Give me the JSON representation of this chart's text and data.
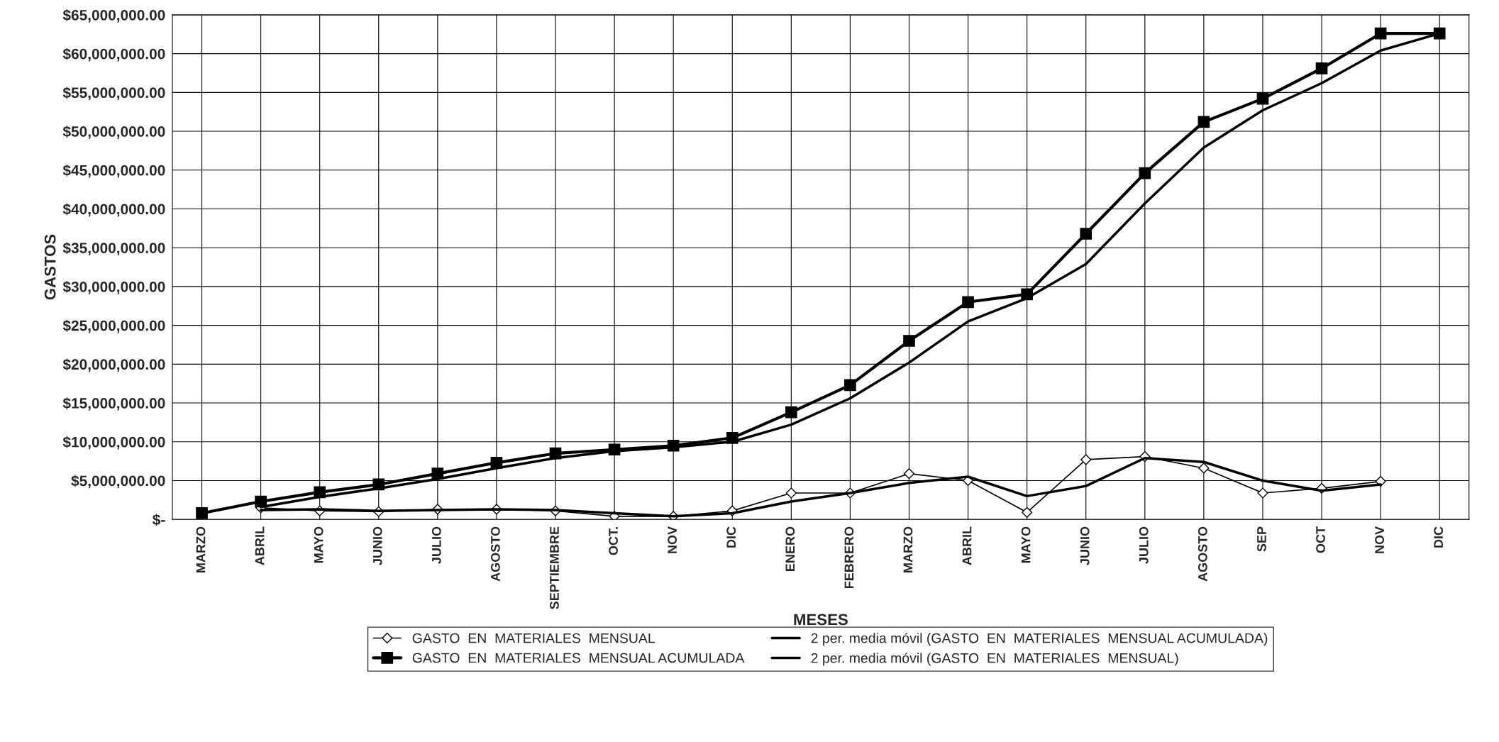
{
  "chart_data": {
    "type": "line",
    "xlabel": "MESES",
    "ylabel": "GASTOS",
    "categories": [
      "MARZO",
      "ABRIL",
      "MAYO",
      "JUNIO",
      "JULIO",
      "AGOSTO",
      "SEPTIEMBRE",
      "OCT.",
      "NOV",
      "DIC",
      "ENERO",
      "FEBRERO",
      "MARZO",
      "ABRIL",
      "MAYO",
      "JUNIO",
      "JULIO",
      "AGOSTO",
      "SEP",
      "OCT",
      "NOV",
      "DIC"
    ],
    "ylim": [
      0,
      65000000
    ],
    "yticks": [
      {
        "value": 0,
        "label": "$-"
      },
      {
        "value": 5000000,
        "label": "$5,000,000.00"
      },
      {
        "value": 10000000,
        "label": "$10,000,000.00"
      },
      {
        "value": 15000000,
        "label": "$15,000,000.00"
      },
      {
        "value": 20000000,
        "label": "$20,000,000.00"
      },
      {
        "value": 25000000,
        "label": "$25,000,000.00"
      },
      {
        "value": 30000000,
        "label": "$30,000,000.00"
      },
      {
        "value": 35000000,
        "label": "$35,000,000.00"
      },
      {
        "value": 40000000,
        "label": "$40,000,000.00"
      },
      {
        "value": 45000000,
        "label": "$45,000,000.00"
      },
      {
        "value": 50000000,
        "label": "$50,000,000.00"
      },
      {
        "value": 55000000,
        "label": "$55,000,000.00"
      },
      {
        "value": 60000000,
        "label": "$60,000,000.00"
      },
      {
        "value": 65000000,
        "label": "$65,000,000.00"
      }
    ],
    "grid": true,
    "legend": "bottom",
    "series": [
      {
        "name": "GASTO  EN  MATERIALES  MENSUAL",
        "color": "#000000",
        "marker": "diamond",
        "values": [
          null,
          1500000,
          1100000,
          1000000,
          1300000,
          1300000,
          1100000,
          400000,
          400000,
          1100000,
          3400000,
          3400000,
          5900000,
          5000000,
          900000,
          7700000,
          8100000,
          6600000,
          3400000,
          4000000,
          4900000,
          null
        ]
      },
      {
        "name": "GASTO  EN  MATERIALES  MENSUAL ACUMULADA",
        "color": "#000000",
        "marker": "square",
        "values": [
          800000,
          2300000,
          3500000,
          4500000,
          5900000,
          7300000,
          8500000,
          9000000,
          9500000,
          10500000,
          13800000,
          17300000,
          23000000,
          28000000,
          29000000,
          36800000,
          44600000,
          51200000,
          54200000,
          58100000,
          62600000,
          62600000
        ]
      },
      {
        "name": "2 per. media móvil (GASTO  EN  MATERIALES  MENSUAL ACUMULADA)",
        "color": "#000000",
        "marker": "none",
        "values": [
          null,
          1600000,
          2900000,
          4000000,
          5200000,
          6600000,
          7900000,
          8800000,
          9300000,
          10000000,
          12200000,
          15600000,
          20200000,
          25500000,
          28500000,
          32900000,
          40700000,
          47900000,
          52700000,
          56200000,
          60400000,
          62600000
        ]
      },
      {
        "name": "2 per. media móvil (GASTO  EN  MATERIALES  MENSUAL)",
        "color": "#000000",
        "marker": "none",
        "values": [
          null,
          1200000,
          1300000,
          1100000,
          1200000,
          1300000,
          1200000,
          800000,
          400000,
          800000,
          2300000,
          3400000,
          4700000,
          5500000,
          3000000,
          4300000,
          7900000,
          7400000,
          5000000,
          3700000,
          4500000,
          null
        ]
      }
    ]
  }
}
